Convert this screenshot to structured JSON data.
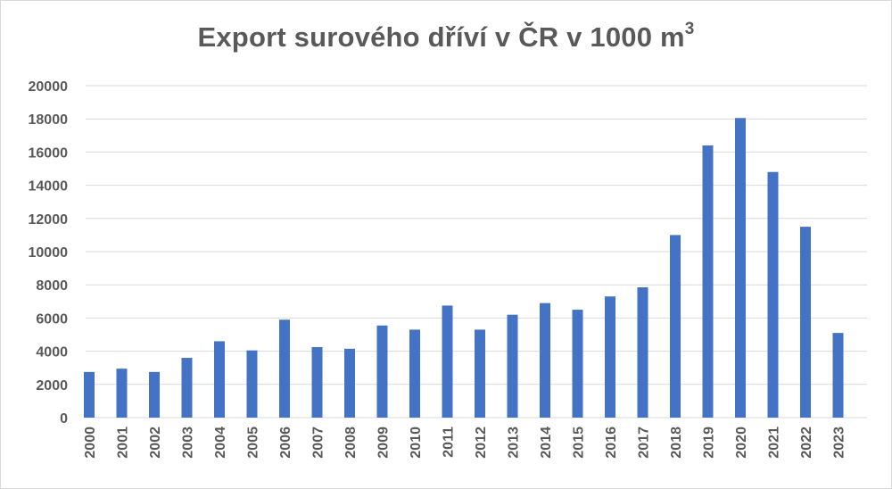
{
  "chart_data": {
    "type": "bar",
    "title": "Export surového dříví v ČR v 1000 m",
    "title_superscript": "3",
    "xlabel": "",
    "ylabel": "",
    "categories": [
      "2000",
      "2001",
      "2002",
      "2003",
      "2004",
      "2005",
      "2006",
      "2007",
      "2008",
      "2009",
      "2010",
      "2011",
      "2012",
      "2013",
      "2014",
      "2015",
      "2016",
      "2017",
      "2018",
      "2019",
      "2020",
      "2021",
      "2022",
      "2023"
    ],
    "values": [
      2750,
      2950,
      2750,
      3600,
      4600,
      4050,
      5900,
      4250,
      4150,
      5550,
      5300,
      6750,
      5300,
      6200,
      6900,
      6500,
      7300,
      7850,
      11000,
      16400,
      18050,
      14800,
      11500,
      5100
    ],
    "ylim": [
      0,
      20000
    ],
    "yticks": [
      "0",
      "2000",
      "4000",
      "6000",
      "8000",
      "10000",
      "12000",
      "14000",
      "16000",
      "18000",
      "20000"
    ],
    "grid": true,
    "legend": "none",
    "colors": {
      "bar": "#4472c4",
      "grid": "#d9d9d9",
      "text": "#595959"
    }
  }
}
